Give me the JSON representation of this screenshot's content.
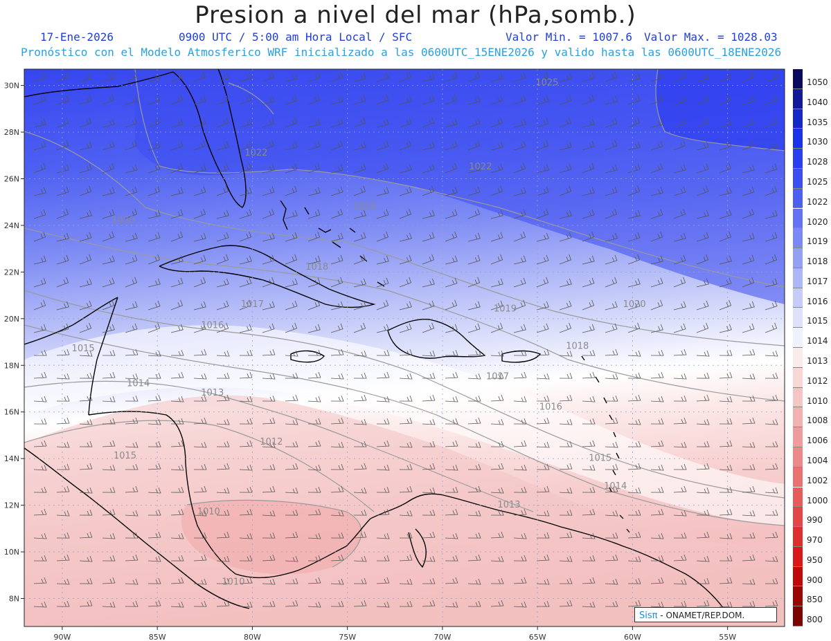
{
  "header": {
    "title": "Presion a nivel del mar (hPa,somb.)",
    "date": "17-Ene-2026",
    "time": "0900 UTC / 5:00 am Hora Local / SFC",
    "min_text": "Valor Min. = 1007.6",
    "max_text": "Valor Max. = 1028.03",
    "description": "Pronóstico con el Modelo Atmosferico WRF inicializado a las 0600UTC_15ENE2026 y valido hasta las  0600UTC_18ENE2026"
  },
  "axes": {
    "lat_labels": [
      "30N",
      "28N",
      "26N",
      "24N",
      "22N",
      "20N",
      "18N",
      "16N",
      "14N",
      "12N",
      "10N",
      "8N"
    ],
    "lat_values": [
      30,
      28,
      26,
      24,
      22,
      20,
      18,
      16,
      14,
      12,
      10,
      8
    ],
    "lon_labels": [
      "90W",
      "85W",
      "80W",
      "75W",
      "70W",
      "65W",
      "60W",
      "55W"
    ],
    "lon_values": [
      -90,
      -85,
      -80,
      -75,
      -70,
      -65,
      -60,
      -55
    ],
    "lat_range": [
      6.8,
      30.7
    ],
    "lon_range": [
      -92.0,
      -52.0
    ]
  },
  "contour_labels": [
    {
      "text": "1025",
      "lon": -64.5,
      "lat": 30.0
    },
    {
      "text": "1022",
      "lon": -79.8,
      "lat": 27.0
    },
    {
      "text": "1022",
      "lon": -68.0,
      "lat": 26.4
    },
    {
      "text": "1020",
      "lon": -86.8,
      "lat": 24.1
    },
    {
      "text": "1020",
      "lon": -74.1,
      "lat": 24.7
    },
    {
      "text": "1018",
      "lon": -76.6,
      "lat": 22.1
    },
    {
      "text": "1017",
      "lon": -80.0,
      "lat": 20.5
    },
    {
      "text": "1019",
      "lon": -66.7,
      "lat": 20.3
    },
    {
      "text": "1020",
      "lon": -59.9,
      "lat": 20.5
    },
    {
      "text": "1016",
      "lon": -82.1,
      "lat": 19.6
    },
    {
      "text": "1015",
      "lon": -88.9,
      "lat": 18.6
    },
    {
      "text": "1018",
      "lon": -62.9,
      "lat": 18.7
    },
    {
      "text": "1017",
      "lon": -67.1,
      "lat": 17.4
    },
    {
      "text": "1014",
      "lon": -86.0,
      "lat": 17.1
    },
    {
      "text": "1016",
      "lon": -64.3,
      "lat": 16.1
    },
    {
      "text": "1013",
      "lon": -82.1,
      "lat": 16.7
    },
    {
      "text": "1012",
      "lon": -79.0,
      "lat": 14.6
    },
    {
      "text": "1015",
      "lon": -86.7,
      "lat": 14.0
    },
    {
      "text": "1015",
      "lon": -61.7,
      "lat": 13.9
    },
    {
      "text": "1014",
      "lon": -60.9,
      "lat": 12.7
    },
    {
      "text": "1013",
      "lon": -66.5,
      "lat": 11.9
    },
    {
      "text": "1010",
      "lon": -82.3,
      "lat": 11.6
    },
    {
      "text": "1010",
      "lon": -81.0,
      "lat": 8.6
    }
  ],
  "legend": {
    "labels": [
      "1050",
      "1040",
      "1035",
      "1030",
      "1028",
      "1025",
      "1022",
      "1020",
      "1019",
      "1018",
      "1017",
      "1016",
      "1015",
      "1014",
      "1013",
      "1012",
      "1010",
      "1008",
      "1006",
      "1004",
      "1002",
      "1000",
      "990",
      "970",
      "950",
      "900",
      "850",
      "800"
    ],
    "colors": [
      "#0b0b5e",
      "#0f1c96",
      "#1428c8",
      "#1a32ea",
      "#2a3ff0",
      "#3a4ef2",
      "#4d60f2",
      "#6373f3",
      "#7b89f4",
      "#94a0f5",
      "#adb6f7",
      "#c6ccf9",
      "#dde1fb",
      "#f0f1fe",
      "#fbecec",
      "#f8d6d6",
      "#f5c4c4",
      "#f2b0b0",
      "#ef9c9c",
      "#ec8888",
      "#e87272",
      "#e55c5c",
      "#e24646",
      "#df2e2e",
      "#d91818",
      "#c00a0a",
      "#9a0606",
      "#7a0303"
    ]
  },
  "credit": {
    "brand": "Sisπ",
    "org": "- ONAMET/REP.DOM."
  }
}
